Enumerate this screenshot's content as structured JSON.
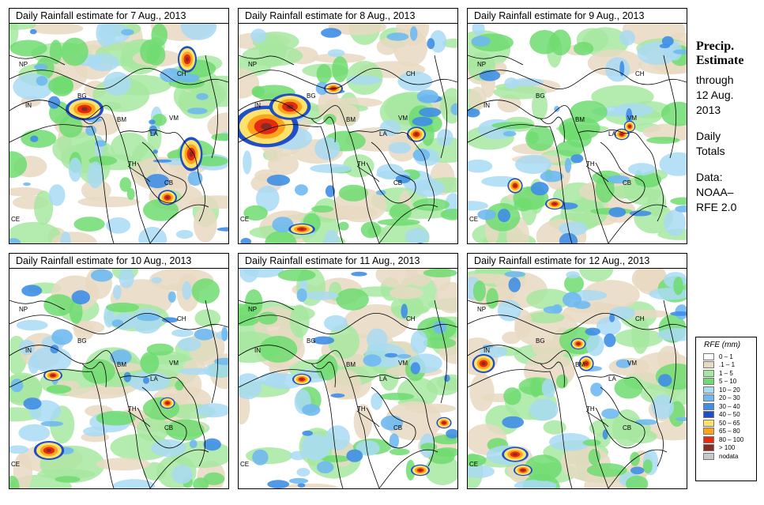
{
  "panels": [
    {
      "title": "Daily Rainfall estimate for  7 Aug., 2013",
      "day": 7
    },
    {
      "title": "Daily Rainfall estimate for  8 Aug., 2013",
      "day": 8
    },
    {
      "title": "Daily Rainfall estimate for  9 Aug., 2013",
      "day": 9
    },
    {
      "title": "Daily Rainfall estimate for  10 Aug., 2013",
      "day": 10
    },
    {
      "title": "Daily Rainfall estimate for  11 Aug., 2013",
      "day": 11
    },
    {
      "title": "Daily Rainfall estimate for  12 Aug., 2013",
      "day": 12
    }
  ],
  "country_labels": [
    "NP",
    "CH",
    "IN",
    "BG",
    "BM",
    "VM",
    "LA",
    "TH",
    "CB",
    "CE"
  ],
  "sidebar": {
    "title_line1": "Precip.",
    "title_line2": "Estimate",
    "through": "through",
    "date_line1": "12 Aug.",
    "date_line2": "2013",
    "totals_line1": "Daily",
    "totals_line2": "Totals",
    "source_line1": "Data:",
    "source_line2": "NOAA–",
    "source_line3": "RFE 2.0"
  },
  "legend": {
    "title": "RFE (mm)",
    "items": [
      {
        "label": "0 – 1",
        "color": "#ffffff"
      },
      {
        "label": ".1 – 1",
        "color": "#e8d9c2"
      },
      {
        "label": "1 – 5",
        "color": "#a7e8a0"
      },
      {
        "label": "5 – 10",
        "color": "#6fdc70"
      },
      {
        "label": "10 – 20",
        "color": "#a9dbf3"
      },
      {
        "label": "20 – 30",
        "color": "#6fb9f0"
      },
      {
        "label": "30 – 40",
        "color": "#3f8ee6"
      },
      {
        "label": "40 – 50",
        "color": "#1f4fc8"
      },
      {
        "label": "50 – 65",
        "color": "#ffe26a"
      },
      {
        "label": "65 – 80",
        "color": "#ffa41a"
      },
      {
        "label": "80 – 100",
        "color": "#e42a10"
      },
      {
        "label": "> 100",
        "color": "#8a2a22"
      },
      {
        "label": "nodata",
        "color": "#c8c8c8"
      }
    ]
  }
}
